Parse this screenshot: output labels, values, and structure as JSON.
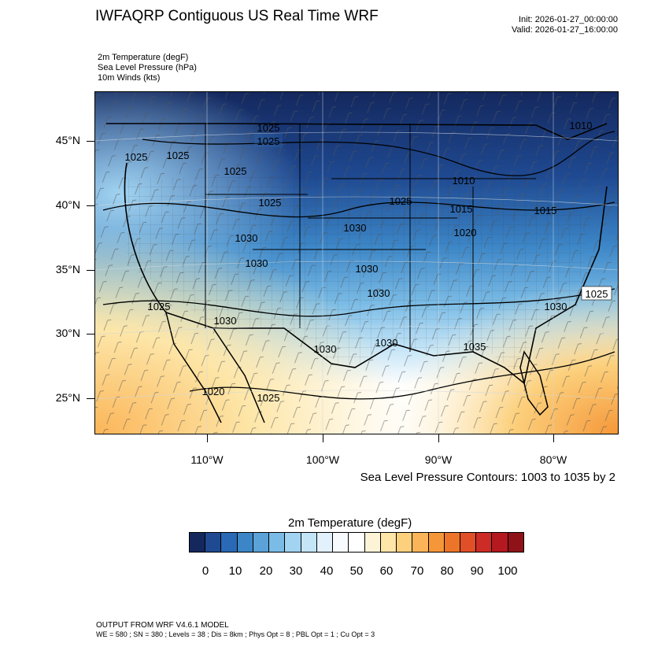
{
  "title": "IWFAQRP Contiguous US Real Time WRF",
  "init": "Init: 2026-01-27_00:00:00",
  "valid": "Valid: 2026-01-27_16:00:00",
  "fields": [
    "2m Temperature   (degF)",
    "Sea Level Pressure   (hPa)",
    "10m Winds   (kts)"
  ],
  "lat_labels": [
    "45°N",
    "40°N",
    "35°N",
    "30°N",
    "25°N"
  ],
  "lon_labels": [
    "110°W",
    "100°W",
    "90°W",
    "80°W"
  ],
  "contour_note": "Sea Level Pressure Contours: 1003 to 1035 by 2",
  "colorbar": {
    "title": "2m Temperature  (degF)",
    "labels": [
      "0",
      "10",
      "20",
      "30",
      "40",
      "50",
      "60",
      "70",
      "80",
      "90",
      "100"
    ],
    "colors": [
      "#14285e",
      "#1f4a92",
      "#2a69b5",
      "#3c86c7",
      "#5aa2d8",
      "#7bbce6",
      "#a2d4f1",
      "#c4e4f7",
      "#e2f1fb",
      "#f7fbfd",
      "#ffffff",
      "#fdf4d8",
      "#fde6a8",
      "#fcd07c",
      "#fbb558",
      "#f59739",
      "#ec752a",
      "#e04f28",
      "#cc2c25",
      "#b3191f",
      "#8e1218"
    ]
  },
  "pressure_labels": [
    "1025",
    "1025",
    "1025",
    "1025",
    "1025",
    "1030",
    "1030",
    "1030",
    "1030",
    "1030",
    "1030",
    "1030",
    "1030",
    "1025",
    "1025",
    "1020",
    "1025",
    "1010",
    "1025",
    "1015",
    "1020",
    "1015",
    "1010",
    "1035",
    "1030",
    "1025"
  ],
  "footer": {
    "line1": "OUTPUT FROM WRF V4.6.1 MODEL",
    "line2": "WE = 580 ; SN = 380 ; Levels = 38 ; Dis = 8km ; Phys Opt = 8 ; PBL Opt = 1 ; Cu Opt = 3"
  }
}
